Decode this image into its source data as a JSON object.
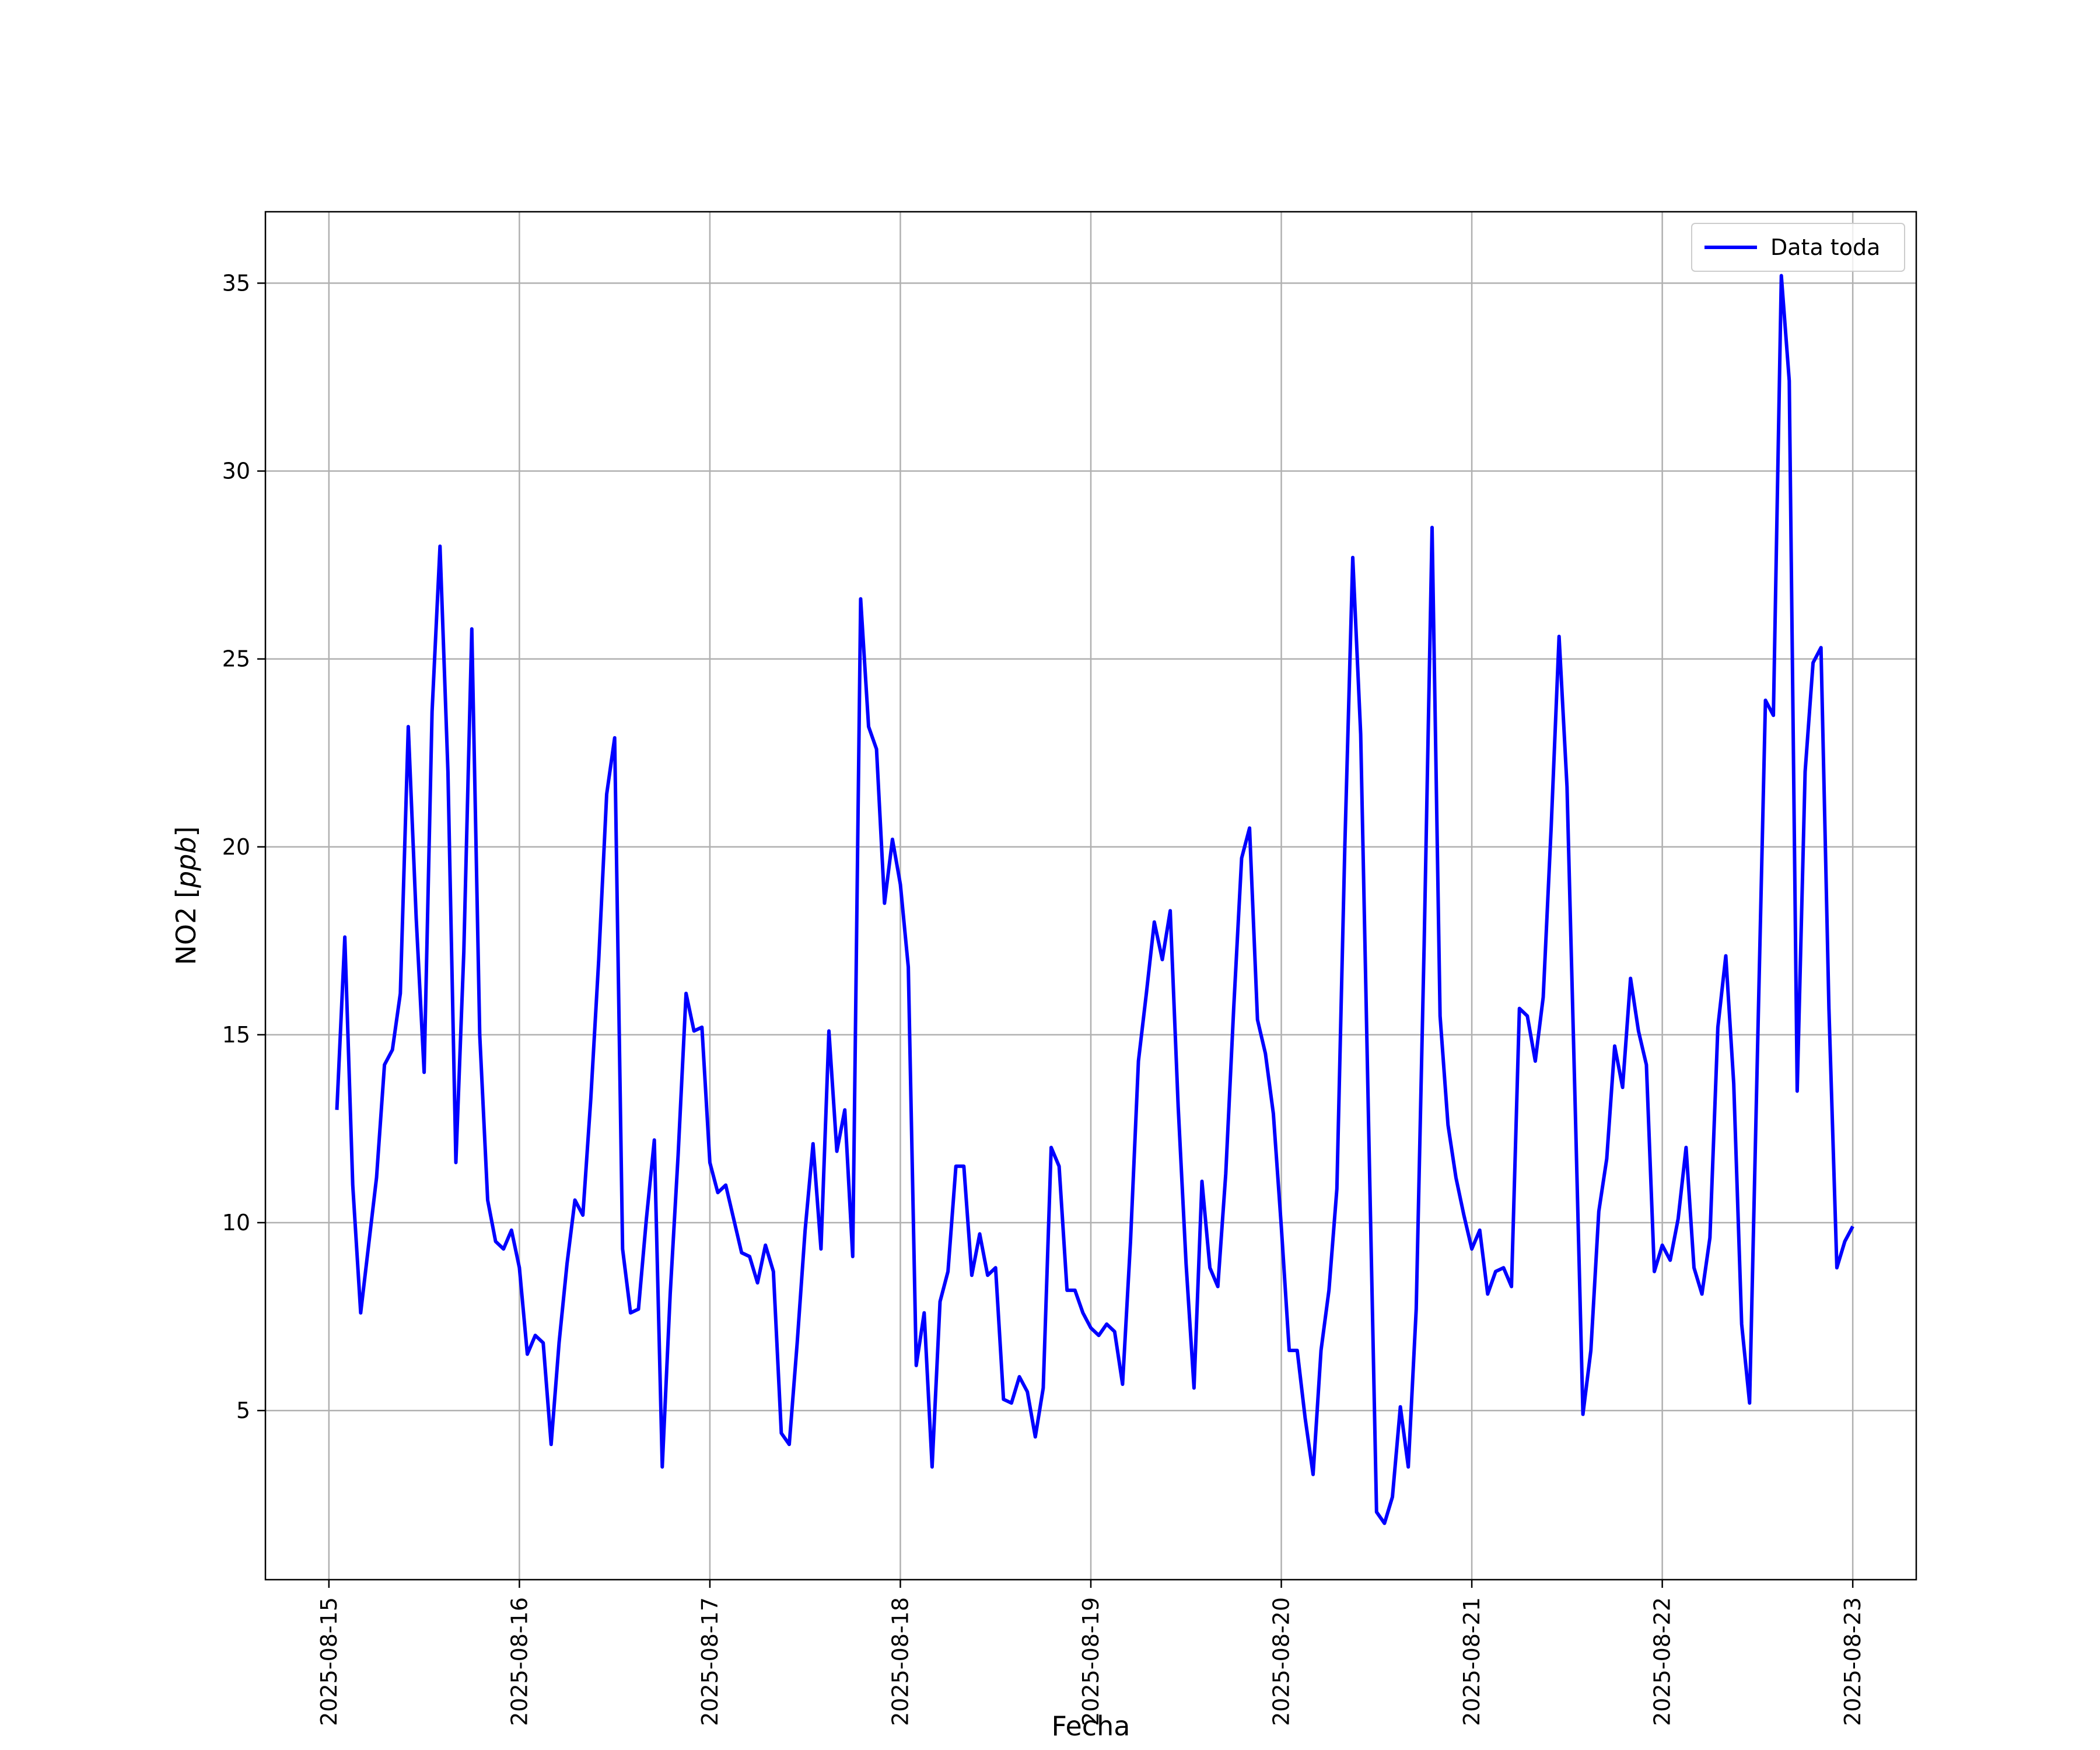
{
  "chart_data": {
    "type": "line",
    "xlabel": "Fecha",
    "ylabel": "NO2 [ppb]",
    "xlim": [
      "2025-08-14T16:00",
      "2025-08-23T08:00"
    ],
    "ylim": [
      0.5,
      36.9
    ],
    "x_ticks": [
      "2025-08-15",
      "2025-08-16",
      "2025-08-17",
      "2025-08-18",
      "2025-08-19",
      "2025-08-20",
      "2025-08-21",
      "2025-08-22",
      "2025-08-23"
    ],
    "y_ticks": [
      5,
      10,
      15,
      20,
      25,
      30,
      35
    ],
    "grid": true,
    "legend_position": "top-right",
    "line_color": "#0000ff",
    "series": [
      {
        "name": "Data toda",
        "x": [
          "2025-08-15T01:00",
          "2025-08-15T02:00",
          "2025-08-15T03:00",
          "2025-08-15T04:00",
          "2025-08-15T06:00",
          "2025-08-15T07:00",
          "2025-08-15T08:00",
          "2025-08-15T09:00",
          "2025-08-15T10:00",
          "2025-08-15T11:00",
          "2025-08-15T12:00",
          "2025-08-15T13:00",
          "2025-08-15T14:00",
          "2025-08-15T15:00",
          "2025-08-15T16:00",
          "2025-08-15T17:00",
          "2025-08-15T18:00",
          "2025-08-15T19:00",
          "2025-08-15T20:00",
          "2025-08-15T21:00",
          "2025-08-15T22:00",
          "2025-08-15T23:00",
          "2025-08-16T00:00",
          "2025-08-16T01:00",
          "2025-08-16T02:00",
          "2025-08-16T03:00",
          "2025-08-16T04:00",
          "2025-08-16T05:00",
          "2025-08-16T06:00",
          "2025-08-16T07:00",
          "2025-08-16T08:00",
          "2025-08-16T09:00",
          "2025-08-16T10:00",
          "2025-08-16T11:00",
          "2025-08-16T12:00",
          "2025-08-16T13:00",
          "2025-08-16T14:00",
          "2025-08-16T15:00",
          "2025-08-16T16:00",
          "2025-08-16T17:00",
          "2025-08-16T18:00",
          "2025-08-16T19:00",
          "2025-08-16T20:00",
          "2025-08-16T21:00",
          "2025-08-16T22:00",
          "2025-08-16T23:00",
          "2025-08-17T00:00",
          "2025-08-17T01:00",
          "2025-08-17T02:00",
          "2025-08-17T03:00",
          "2025-08-17T04:00",
          "2025-08-17T05:00",
          "2025-08-17T06:00",
          "2025-08-17T07:00",
          "2025-08-17T08:00",
          "2025-08-17T09:00",
          "2025-08-17T10:00",
          "2025-08-17T11:00",
          "2025-08-17T12:00",
          "2025-08-17T13:00",
          "2025-08-17T14:00",
          "2025-08-17T15:00",
          "2025-08-17T16:00",
          "2025-08-17T17:00",
          "2025-08-17T18:00",
          "2025-08-17T19:00",
          "2025-08-17T20:00",
          "2025-08-17T21:00",
          "2025-08-17T22:00",
          "2025-08-17T23:00",
          "2025-08-18T00:00",
          "2025-08-18T01:00",
          "2025-08-18T02:00",
          "2025-08-18T03:00",
          "2025-08-18T04:00",
          "2025-08-18T05:00",
          "2025-08-18T06:00",
          "2025-08-18T07:00",
          "2025-08-18T08:00",
          "2025-08-18T09:00",
          "2025-08-18T10:00",
          "2025-08-18T11:00",
          "2025-08-18T12:00",
          "2025-08-18T13:00",
          "2025-08-18T14:00",
          "2025-08-18T15:00",
          "2025-08-18T16:00",
          "2025-08-18T17:00",
          "2025-08-18T18:00",
          "2025-08-18T19:00",
          "2025-08-18T20:00",
          "2025-08-18T21:00",
          "2025-08-18T22:00",
          "2025-08-18T23:00",
          "2025-08-19T00:00",
          "2025-08-19T01:00",
          "2025-08-19T02:00",
          "2025-08-19T03:00",
          "2025-08-19T04:00",
          "2025-08-19T05:00",
          "2025-08-19T06:00",
          "2025-08-19T07:00",
          "2025-08-19T08:00",
          "2025-08-19T09:00",
          "2025-08-19T10:00",
          "2025-08-19T11:00",
          "2025-08-19T12:00",
          "2025-08-19T13:00",
          "2025-08-19T14:00",
          "2025-08-19T15:00",
          "2025-08-19T16:00",
          "2025-08-19T17:00",
          "2025-08-19T18:00",
          "2025-08-19T19:00",
          "2025-08-19T20:00",
          "2025-08-19T21:00",
          "2025-08-19T22:00",
          "2025-08-19T23:00",
          "2025-08-20T00:00",
          "2025-08-20T01:00",
          "2025-08-20T02:00",
          "2025-08-20T03:00",
          "2025-08-20T04:00",
          "2025-08-20T05:00",
          "2025-08-20T06:00",
          "2025-08-20T07:00",
          "2025-08-20T08:00",
          "2025-08-20T09:00",
          "2025-08-20T10:00",
          "2025-08-20T11:00",
          "2025-08-20T12:00",
          "2025-08-20T13:00",
          "2025-08-20T14:00",
          "2025-08-20T15:00",
          "2025-08-20T16:00",
          "2025-08-20T17:00",
          "2025-08-20T18:00",
          "2025-08-20T19:00",
          "2025-08-20T20:00",
          "2025-08-20T21:00",
          "2025-08-20T22:00",
          "2025-08-20T23:00",
          "2025-08-21T00:00",
          "2025-08-21T01:00",
          "2025-08-21T02:00",
          "2025-08-21T03:00",
          "2025-08-21T04:00",
          "2025-08-21T05:00",
          "2025-08-21T06:00",
          "2025-08-21T07:00",
          "2025-08-21T08:00",
          "2025-08-21T09:00",
          "2025-08-21T10:00",
          "2025-08-21T11:00",
          "2025-08-21T12:00",
          "2025-08-21T13:00",
          "2025-08-21T14:00",
          "2025-08-21T15:00",
          "2025-08-21T16:00",
          "2025-08-21T17:00",
          "2025-08-21T18:00",
          "2025-08-21T19:00",
          "2025-08-21T20:00",
          "2025-08-21T21:00",
          "2025-08-21T22:00",
          "2025-08-21T23:00",
          "2025-08-22T00:00",
          "2025-08-22T01:00",
          "2025-08-22T02:00",
          "2025-08-22T03:00",
          "2025-08-22T04:00",
          "2025-08-22T05:00",
          "2025-08-22T06:00",
          "2025-08-22T07:00",
          "2025-08-22T08:00",
          "2025-08-22T09:00",
          "2025-08-22T10:00",
          "2025-08-22T11:00",
          "2025-08-22T12:00",
          "2025-08-22T13:00",
          "2025-08-22T14:00",
          "2025-08-22T15:00",
          "2025-08-22T16:00",
          "2025-08-22T17:00",
          "2025-08-22T18:00",
          "2025-08-22T19:00",
          "2025-08-22T20:00",
          "2025-08-22T21:00",
          "2025-08-22T22:00",
          "2025-08-22T23:00",
          "2025-08-23T00:00"
        ],
        "y": [
          13.0,
          17.6,
          11.0,
          7.6,
          11.2,
          14.2,
          14.6,
          16.1,
          23.2,
          18.1,
          14.0,
          23.6,
          28.0,
          22.0,
          11.6,
          17.2,
          25.8,
          15.0,
          10.6,
          9.5,
          9.3,
          9.8,
          8.8,
          6.5,
          7.0,
          6.8,
          4.1,
          6.8,
          8.9,
          10.6,
          10.2,
          13.3,
          17.0,
          21.4,
          22.9,
          9.3,
          7.6,
          7.7,
          10.1,
          12.2,
          3.5,
          8.1,
          11.8,
          16.1,
          15.1,
          15.2,
          11.6,
          10.8,
          11.0,
          10.1,
          9.2,
          9.1,
          8.4,
          9.4,
          8.7,
          4.4,
          4.1,
          6.8,
          9.8,
          12.1,
          9.3,
          15.1,
          11.9,
          13.0,
          9.1,
          26.6,
          23.2,
          22.6,
          18.5,
          20.2,
          19.0,
          16.8,
          6.2,
          7.6,
          3.5,
          7.9,
          8.7,
          11.5,
          11.5,
          8.6,
          9.7,
          8.6,
          8.8,
          5.3,
          5.2,
          5.9,
          5.5,
          4.3,
          5.6,
          12.0,
          11.5,
          8.2,
          8.2,
          7.6,
          7.2,
          7.0,
          7.3,
          7.1,
          5.7,
          9.5,
          14.3,
          16.1,
          18.0,
          17.0,
          18.3,
          13.1,
          8.9,
          5.6,
          11.1,
          8.8,
          8.3,
          11.3,
          15.7,
          19.7,
          20.5,
          15.4,
          14.5,
          12.9,
          9.9,
          6.6,
          6.6,
          4.8,
          3.3,
          6.6,
          8.2,
          10.9,
          20.0,
          27.7,
          23.0,
          12.6,
          2.3,
          2.0,
          2.7,
          5.1,
          3.5,
          7.7,
          17.4,
          28.5,
          15.5,
          12.6,
          11.2,
          10.2,
          9.3,
          9.8,
          8.1,
          8.7,
          8.8,
          8.3,
          15.7,
          15.5,
          14.3,
          16.0,
          20.5,
          25.6,
          21.6,
          13.3,
          4.9,
          6.6,
          10.3,
          11.7,
          14.7,
          13.6,
          16.5,
          15.1,
          14.2,
          8.7,
          9.4,
          9.0,
          10.1,
          12.0,
          8.8,
          8.1,
          9.6,
          15.2,
          17.1,
          13.7,
          7.3,
          5.2,
          14.6,
          23.9,
          23.5,
          35.2,
          32.4,
          13.5,
          22.0,
          24.9,
          25.3,
          15.7,
          8.8,
          9.5,
          9.9
        ]
      }
    ]
  }
}
